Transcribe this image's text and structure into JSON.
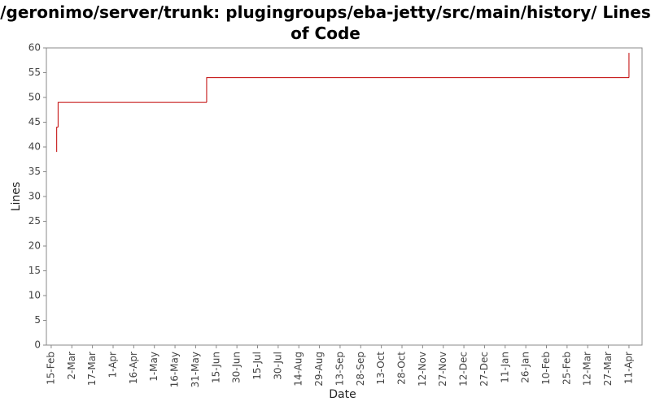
{
  "chart_data": {
    "type": "step",
    "title": "/geronimo/server/trunk: plugingroups/eba-jetty/src/main/history/ Lines of Code",
    "x_label": "Date",
    "y_label": "Lines",
    "series": [
      {
        "name": "Lines",
        "color": "#c00000",
        "x": [
          4,
          4,
          5,
          113,
          420
        ],
        "values": [
          39,
          44,
          49,
          54,
          59
        ]
      }
    ],
    "xlim": [
      -3.5,
      429.5
    ],
    "xticks": [
      {
        "value": 0,
        "label": "15-Feb"
      },
      {
        "value": 15,
        "label": "2-Mar"
      },
      {
        "value": 30,
        "label": "17-Mar"
      },
      {
        "value": 45,
        "label": "1-Apr"
      },
      {
        "value": 60,
        "label": "16-Apr"
      },
      {
        "value": 75,
        "label": "1-May"
      },
      {
        "value": 90,
        "label": "16-May"
      },
      {
        "value": 105,
        "label": "31-May"
      },
      {
        "value": 120,
        "label": "15-Jun"
      },
      {
        "value": 135,
        "label": "30-Jun"
      },
      {
        "value": 150,
        "label": "15-Jul"
      },
      {
        "value": 165,
        "label": "30-Jul"
      },
      {
        "value": 180,
        "label": "14-Aug"
      },
      {
        "value": 195,
        "label": "29-Aug"
      },
      {
        "value": 210,
        "label": "13-Sep"
      },
      {
        "value": 225,
        "label": "28-Sep"
      },
      {
        "value": 240,
        "label": "13-Oct"
      },
      {
        "value": 255,
        "label": "28-Oct"
      },
      {
        "value": 270,
        "label": "12-Nov"
      },
      {
        "value": 285,
        "label": "27-Nov"
      },
      {
        "value": 300,
        "label": "12-Dec"
      },
      {
        "value": 315,
        "label": "27-Dec"
      },
      {
        "value": 330,
        "label": "11-Jan"
      },
      {
        "value": 345,
        "label": "26-Jan"
      },
      {
        "value": 360,
        "label": "10-Feb"
      },
      {
        "value": 375,
        "label": "25-Feb"
      },
      {
        "value": 390,
        "label": "12-Mar"
      },
      {
        "value": 405,
        "label": "27-Mar"
      },
      {
        "value": 420,
        "label": "11-Apr"
      }
    ],
    "ylim": [
      0,
      60
    ],
    "yticks": [
      0,
      5,
      10,
      15,
      20,
      25,
      30,
      35,
      40,
      45,
      50,
      55,
      60
    ],
    "grid": false
  }
}
